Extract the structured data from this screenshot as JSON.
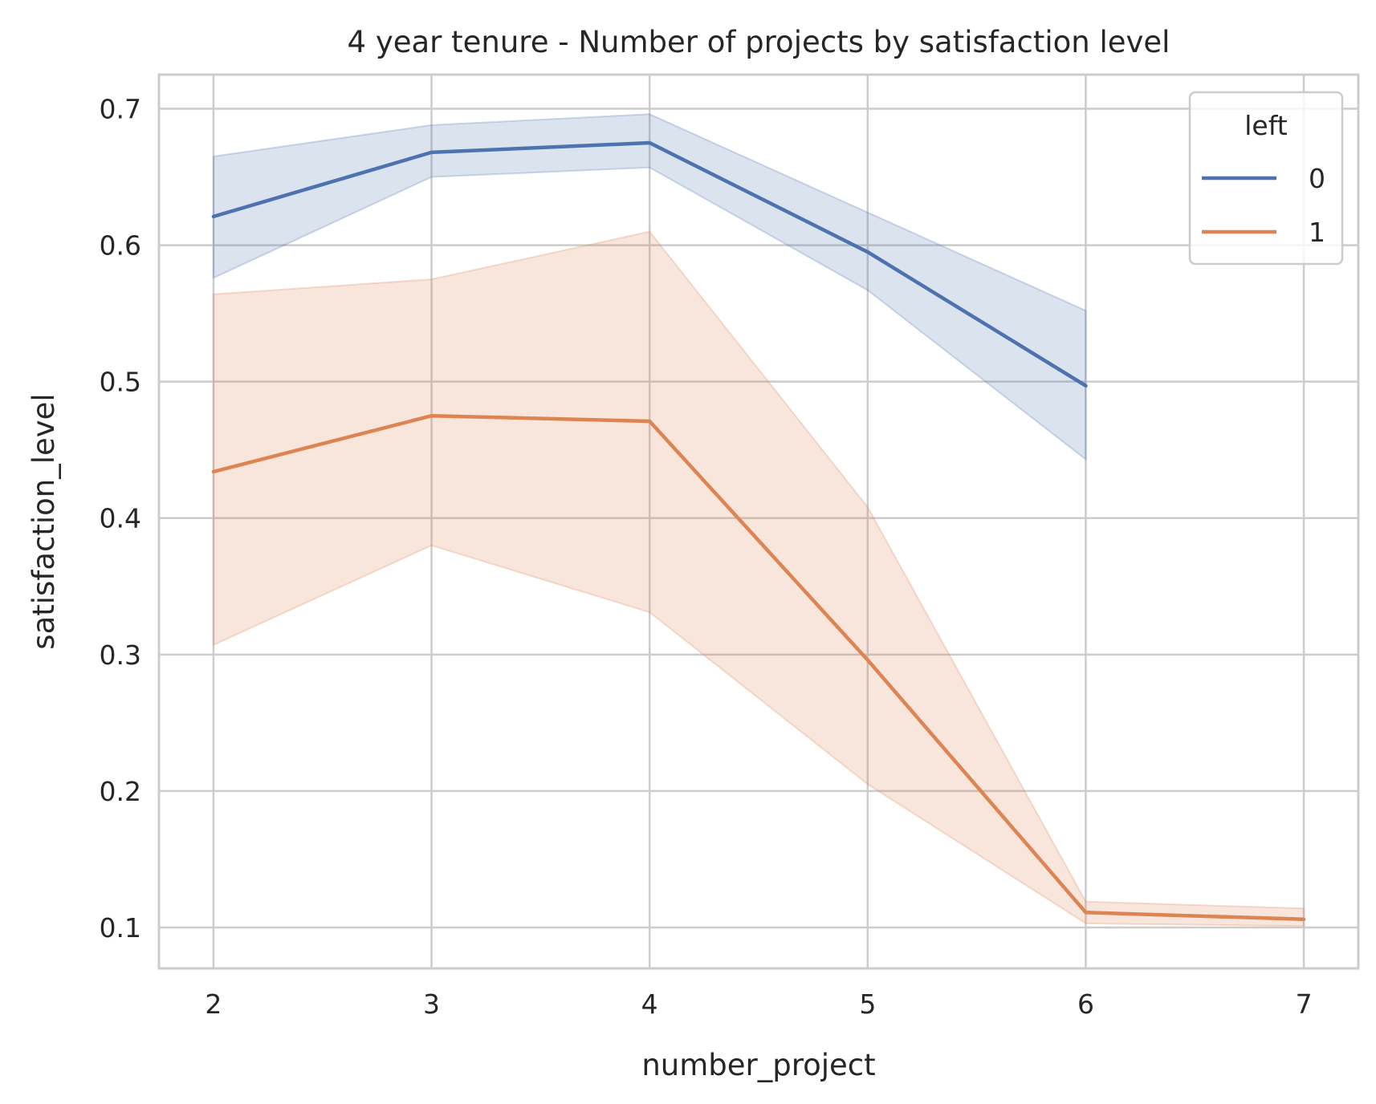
{
  "chart_data": {
    "type": "line",
    "title": "4 year tenure - Number of projects by satisfaction level",
    "xlabel": "number_project",
    "ylabel": "satisfaction_level",
    "x_ticks": [
      2,
      3,
      4,
      5,
      6,
      7
    ],
    "y_ticks": [
      0.1,
      0.2,
      0.3,
      0.4,
      0.5,
      0.6,
      0.7
    ],
    "y_tick_labels": [
      "0.1",
      "0.2",
      "0.3",
      "0.4",
      "0.5",
      "0.6",
      "0.7"
    ],
    "xlim": [
      1.75,
      7.25
    ],
    "ylim": [
      0.07,
      0.725
    ],
    "grid": true,
    "legend": {
      "title": "left",
      "placement": "top-right"
    },
    "series": [
      {
        "name": "0",
        "color": "#4c72b0",
        "x": [
          2,
          3,
          4,
          5,
          6
        ],
        "y": [
          0.621,
          0.668,
          0.675,
          0.595,
          0.497
        ],
        "ci_lower": [
          0.576,
          0.65,
          0.657,
          0.567,
          0.443
        ],
        "ci_upper": [
          0.665,
          0.688,
          0.696,
          0.624,
          0.552
        ]
      },
      {
        "name": "1",
        "color": "#dd8452",
        "x": [
          2,
          3,
          4,
          5,
          6,
          7
        ],
        "y": [
          0.434,
          0.475,
          0.471,
          0.296,
          0.111,
          0.106
        ],
        "ci_lower": [
          0.307,
          0.38,
          0.331,
          0.205,
          0.103,
          0.101
        ],
        "ci_upper": [
          0.564,
          0.575,
          0.61,
          0.408,
          0.119,
          0.114
        ]
      }
    ]
  }
}
